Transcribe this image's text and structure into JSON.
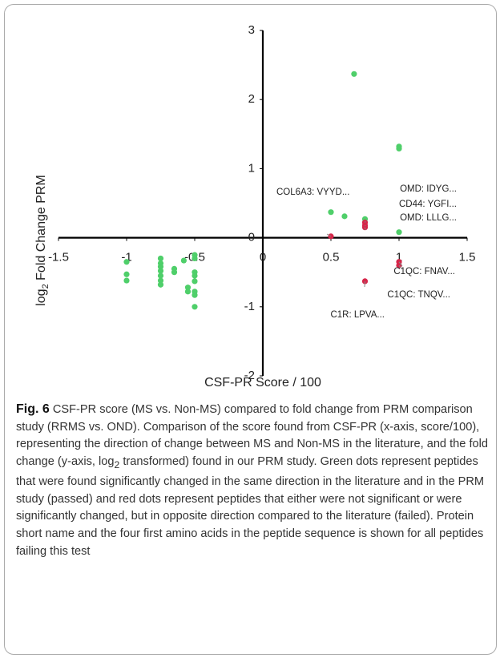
{
  "chart_data": {
    "type": "scatter",
    "x_label": "CSF-PR Score / 100",
    "y_label": [
      "log",
      "2",
      " Fold Change PRM"
    ],
    "xlim": [
      -1.5,
      1.5
    ],
    "xticks": [
      -1.5,
      -1,
      -0.5,
      0,
      0.5,
      1,
      1.5
    ],
    "ylim": [
      -2,
      3
    ],
    "yticks": [
      -2,
      -1,
      0,
      1,
      2,
      3
    ],
    "series": [
      {
        "color": "#4fcf6a",
        "x": [
          0.67,
          1,
          1,
          0.5,
          0.6,
          0.75,
          1,
          -1,
          -1,
          -1,
          -0.75,
          -0.75,
          -0.75,
          -0.75,
          -0.75,
          -0.75,
          -0.75,
          -0.65,
          -0.65,
          -0.58,
          -0.5,
          -0.5,
          -0.5,
          -0.5,
          -0.5,
          -0.5,
          -0.5,
          -0.5,
          -0.55,
          -0.55
        ],
        "values": [
          2.37,
          1.32,
          1.29,
          0.37,
          0.31,
          0.27,
          0.08,
          -0.35,
          -0.53,
          -0.62,
          -0.3,
          -0.37,
          -0.42,
          -0.48,
          -0.55,
          -0.62,
          -0.68,
          -0.45,
          -0.5,
          -0.33,
          -0.25,
          -0.3,
          -0.5,
          -0.55,
          -0.63,
          -0.78,
          -0.83,
          -1.0,
          -0.72,
          -0.78
        ]
      },
      {
        "color": "#d6264a",
        "x": [
          0.5,
          0.75,
          0.75,
          0.75,
          1,
          1,
          0.75
        ],
        "values": [
          0.02,
          0.22,
          0.18,
          0.15,
          -0.35,
          -0.4,
          -0.63
        ]
      }
    ],
    "annotations": [
      {
        "text": "COL6A3: VYYD...",
        "point": 0
      },
      {
        "text": "OMD: IDYG...",
        "point": 1
      },
      {
        "text": "CD44: YGFI...",
        "point": 2
      },
      {
        "text": "OMD: LLLG...",
        "point": 3
      },
      {
        "text": "C1QC: FNAV...",
        "point": 4
      },
      {
        "text": "C1QC: TNQV...",
        "point": 5
      },
      {
        "text": "C1R: LPVA...",
        "point": 6
      }
    ]
  },
  "caption": {
    "label": "Fig. 6",
    "text": [
      "  CSF-PR score (MS vs. Non-MS) compared to fold change from PRM comparison study (RRMS vs. OND). Comparison of the score found from CSF-PR (x-axis, score/100), representing the direction of change between MS and Non-MS in the literature, and the fold change (y-axis, log",
      "2",
      " transformed) found in our PRM study. Green dots represent peptides that were found significantly changed in the same direction in the literature and in the PRM study (passed) and red dots represent peptides that either were not significant or were significantly changed, but in opposite direction compared to the literature (failed). Protein short name and the four first amino acids in the peptide sequence is shown for all peptides failing this test"
    ]
  }
}
